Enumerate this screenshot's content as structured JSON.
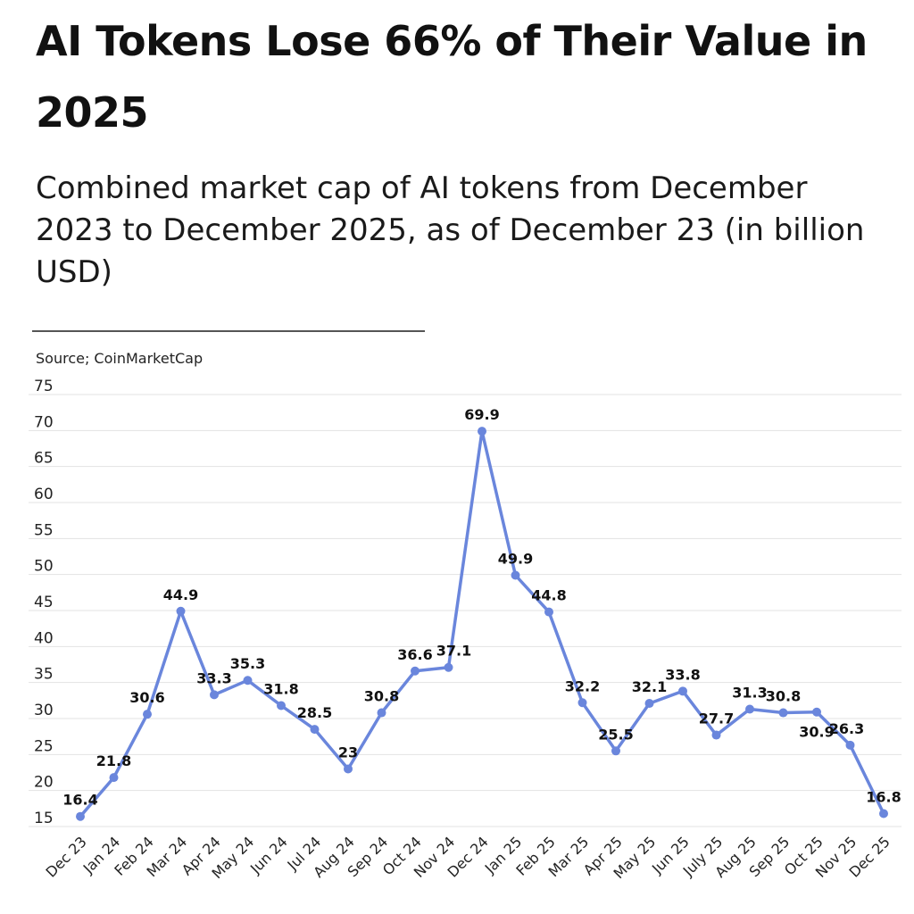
{
  "header": {
    "title": "AI Tokens Lose 66% of Their Value in 2025",
    "subtitle": "Combined market cap of AI tokens from December 2023 to December 2025, as of December 23 (in billion USD)",
    "source": "Source; CoinMarketCap"
  },
  "chart_data": {
    "type": "line",
    "title": "AI Tokens Lose 66% of Their Value in 2025",
    "subtitle": "Combined market cap of AI tokens from December 2023 to December 2025, as of December 23 (in billion USD)",
    "xlabel": "",
    "ylabel": "",
    "ylim": [
      15,
      75
    ],
    "yticks": [
      15,
      20,
      25,
      30,
      35,
      40,
      45,
      50,
      55,
      60,
      65,
      70,
      75
    ],
    "grid": true,
    "legend": "none",
    "colors": {
      "line": "#6a86dc",
      "grid": "#e3e3e3",
      "text": "#111111"
    },
    "categories": [
      "Dec 23",
      "Jan 24",
      "Feb 24",
      "Mar 24",
      "Apr 24",
      "May 24",
      "Jun 24",
      "Jul 24",
      "Aug 24",
      "Sep 24",
      "Oct 24",
      "Nov 24",
      "Dec 24",
      "Jan 25",
      "Feb 25",
      "Mar 25",
      "Apr 25",
      "May 25",
      "Jun 25",
      "July 25",
      "Aug 25",
      "Sep 25",
      "Oct 25",
      "Nov 25",
      "Dec 25"
    ],
    "series": [
      {
        "values": [
          16.4,
          21.8,
          30.6,
          44.9,
          33.3,
          35.3,
          31.8,
          28.5,
          23,
          30.8,
          36.6,
          37.1,
          69.9,
          49.9,
          44.8,
          32.2,
          25.5,
          32.1,
          33.8,
          27.7,
          31.3,
          30.8,
          30.9,
          26.3,
          16.8
        ],
        "labels": [
          "16.4",
          "21.8",
          "30.6",
          "44.9",
          "33.3",
          "35.3",
          "31.8",
          "28.5",
          "23",
          "30.8",
          "36.6",
          "37.1",
          "69.9",
          "49.9",
          "44.8",
          "32.2",
          "25.5",
          "32.1",
          "33.8",
          "27.7",
          "31.3",
          "30.8",
          "30.9",
          "26.3",
          "16.8"
        ]
      }
    ]
  }
}
